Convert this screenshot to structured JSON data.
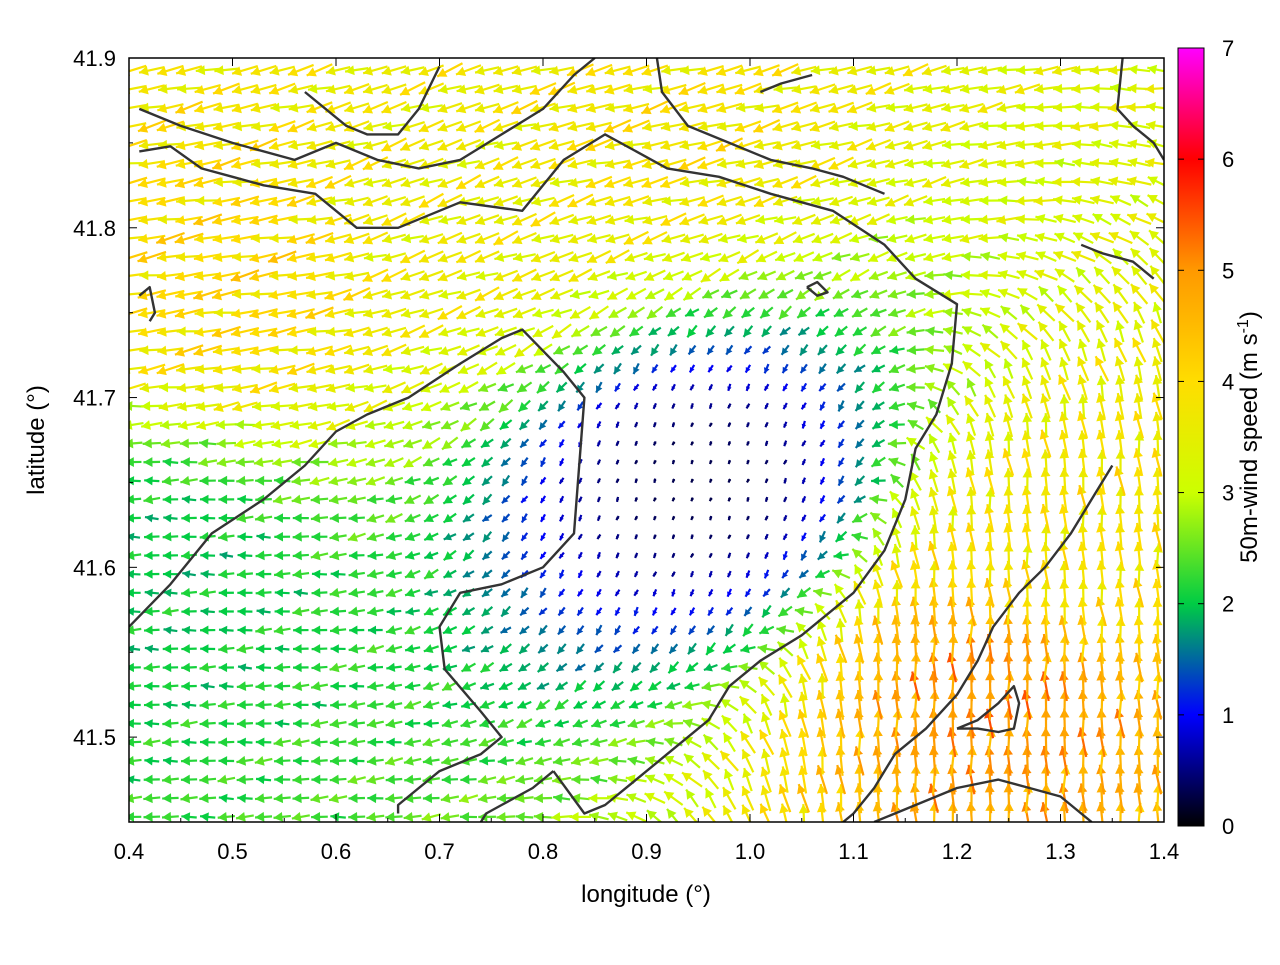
{
  "chart_data": {
    "type": "quiver",
    "title": "",
    "xlabel": "longitude (°)",
    "ylabel": "latitude (°)",
    "colorbar_label": "50m-wind speed (m s-1)",
    "colorbar_label_parts": {
      "main": "50m-wind speed (m s",
      "sup": "-1",
      "close": ")"
    },
    "xlim": [
      0.4,
      1.4
    ],
    "ylim": [
      41.45,
      41.9
    ],
    "x_ticks": [
      "0.4",
      "0.5",
      "0.6",
      "0.7",
      "0.8",
      "0.9",
      "1.0",
      "1.1",
      "1.2",
      "1.3",
      "1.4"
    ],
    "x_tick_values": [
      0.4,
      0.5,
      0.6,
      0.7,
      0.8,
      0.9,
      1.0,
      1.1,
      1.2,
      1.3,
      1.4
    ],
    "y_ticks": [
      "41.5",
      "41.6",
      "41.7",
      "41.8",
      "41.9"
    ],
    "y_tick_values": [
      41.5,
      41.6,
      41.7,
      41.8,
      41.9
    ],
    "colorbar_ticks": [
      "0",
      "1",
      "2",
      "3",
      "4",
      "5",
      "6",
      "7"
    ],
    "colorbar_range": [
      0,
      7
    ],
    "colormap": [
      "#000000",
      "#0000ff",
      "#00cc44",
      "#ccff00",
      "#ffdd00",
      "#ff9900",
      "#ff0000",
      "#ff00ff"
    ],
    "grid": false,
    "wind_field": {
      "grid_step_lon": 0.018,
      "grid_step_lat": 0.011,
      "dominant_direction": "westward (blowing toward west)",
      "regions": [
        {
          "center": [
            0.5,
            41.77
          ],
          "speed_ms": 4.0,
          "direction_deg": 190
        },
        {
          "center": [
            0.72,
            41.8
          ],
          "speed_ms": 3.6,
          "direction_deg": 200
        },
        {
          "center": [
            0.9,
            41.86
          ],
          "speed_ms": 3.8,
          "direction_deg": 195
        },
        {
          "center": [
            1.24,
            41.53
          ],
          "speed_ms": 5.0,
          "direction_deg": 92
        },
        {
          "center": [
            1.3,
            41.6
          ],
          "speed_ms": 3.8,
          "direction_deg": 95
        },
        {
          "center": [
            0.42,
            41.6
          ],
          "speed_ms": 2.0,
          "direction_deg": 180
        },
        {
          "center": [
            0.95,
            41.65
          ],
          "speed_ms": 0.3,
          "direction_deg": 250
        }
      ]
    },
    "contours": [
      [
        [
          0.4,
          41.565
        ],
        [
          0.44,
          41.59
        ],
        [
          0.48,
          41.62
        ],
        [
          0.53,
          41.64
        ],
        [
          0.57,
          41.66
        ],
        [
          0.6,
          41.68
        ],
        [
          0.63,
          41.69
        ],
        [
          0.67,
          41.7
        ],
        [
          0.72,
          41.72
        ],
        [
          0.76,
          41.735
        ],
        [
          0.78,
          41.74
        ],
        [
          0.82,
          41.715
        ],
        [
          0.84,
          41.7
        ],
        [
          0.835,
          41.66
        ],
        [
          0.83,
          41.62
        ],
        [
          0.8,
          41.6
        ],
        [
          0.76,
          41.59
        ],
        [
          0.72,
          41.585
        ],
        [
          0.7,
          41.565
        ],
        [
          0.705,
          41.54
        ],
        [
          0.74,
          41.515
        ],
        [
          0.76,
          41.5
        ],
        [
          0.74,
          41.49
        ],
        [
          0.7,
          41.48
        ],
        [
          0.66,
          41.46
        ],
        [
          0.66,
          41.455
        ]
      ],
      [
        [
          0.81,
          41.48
        ],
        [
          0.79,
          41.47
        ],
        [
          0.76,
          41.46
        ],
        [
          0.745,
          41.455
        ],
        [
          0.74,
          41.45
        ]
      ],
      [
        [
          0.41,
          41.845
        ],
        [
          0.44,
          41.848
        ],
        [
          0.47,
          41.835
        ],
        [
          0.5,
          41.83
        ],
        [
          0.53,
          41.825
        ],
        [
          0.58,
          41.82
        ],
        [
          0.62,
          41.8
        ],
        [
          0.66,
          41.8
        ],
        [
          0.72,
          41.815
        ],
        [
          0.78,
          41.81
        ],
        [
          0.82,
          41.84
        ],
        [
          0.86,
          41.855
        ],
        [
          0.92,
          41.835
        ],
        [
          0.97,
          41.83
        ],
        [
          1.02,
          41.82
        ],
        [
          1.08,
          41.81
        ],
        [
          1.13,
          41.79
        ],
        [
          1.16,
          41.77
        ],
        [
          1.2,
          41.755
        ],
        [
          1.195,
          41.72
        ],
        [
          1.18,
          41.69
        ],
        [
          1.16,
          41.67
        ],
        [
          1.15,
          41.64
        ],
        [
          1.13,
          41.61
        ],
        [
          1.1,
          41.585
        ],
        [
          1.05,
          41.56
        ],
        [
          1.01,
          41.545
        ],
        [
          0.98,
          41.53
        ],
        [
          0.96,
          41.51
        ],
        [
          0.92,
          41.49
        ],
        [
          0.89,
          41.475
        ],
        [
          0.86,
          41.46
        ],
        [
          0.84,
          41.455
        ],
        [
          0.81,
          41.48
        ]
      ],
      [
        [
          0.41,
          41.87
        ],
        [
          0.45,
          41.86
        ],
        [
          0.5,
          41.85
        ],
        [
          0.56,
          41.84
        ],
        [
          0.6,
          41.85
        ],
        [
          0.64,
          41.84
        ],
        [
          0.68,
          41.835
        ],
        [
          0.72,
          41.84
        ],
        [
          0.76,
          41.855
        ],
        [
          0.8,
          41.87
        ],
        [
          0.83,
          41.89
        ],
        [
          0.85,
          41.9
        ]
      ],
      [
        [
          0.57,
          41.88
        ],
        [
          0.59,
          41.87
        ],
        [
          0.61,
          41.86
        ],
        [
          0.63,
          41.855
        ],
        [
          0.66,
          41.855
        ],
        [
          0.68,
          41.87
        ],
        [
          0.7,
          41.895
        ]
      ],
      [
        [
          0.91,
          41.9
        ],
        [
          0.915,
          41.88
        ],
        [
          0.94,
          41.86
        ],
        [
          0.98,
          41.85
        ],
        [
          1.02,
          41.84
        ],
        [
          1.06,
          41.835
        ],
        [
          1.09,
          41.83
        ],
        [
          1.13,
          41.82
        ]
      ],
      [
        [
          1.35,
          41.66
        ],
        [
          1.33,
          41.64
        ],
        [
          1.31,
          41.62
        ],
        [
          1.285,
          41.6
        ],
        [
          1.26,
          41.585
        ],
        [
          1.235,
          41.565
        ],
        [
          1.22,
          41.545
        ],
        [
          1.2,
          41.525
        ],
        [
          1.17,
          41.505
        ],
        [
          1.14,
          41.49
        ],
        [
          1.12,
          41.47
        ],
        [
          1.1,
          41.455
        ],
        [
          1.09,
          41.45
        ]
      ],
      [
        [
          1.12,
          41.45
        ],
        [
          1.16,
          41.46
        ],
        [
          1.2,
          41.47
        ],
        [
          1.24,
          41.475
        ],
        [
          1.27,
          41.47
        ],
        [
          1.3,
          41.465
        ],
        [
          1.33,
          41.45
        ]
      ],
      [
        [
          1.2,
          41.505
        ],
        [
          1.22,
          41.51
        ],
        [
          1.24,
          41.52
        ],
        [
          1.255,
          41.53
        ],
        [
          1.26,
          41.52
        ],
        [
          1.255,
          41.505
        ],
        [
          1.24,
          41.503
        ],
        [
          1.22,
          41.505
        ],
        [
          1.2,
          41.505
        ]
      ],
      [
        [
          1.36,
          41.9
        ],
        [
          1.355,
          41.87
        ],
        [
          1.37,
          41.86
        ],
        [
          1.39,
          41.85
        ],
        [
          1.4,
          41.84
        ]
      ],
      [
        [
          1.32,
          41.79
        ],
        [
          1.34,
          41.785
        ],
        [
          1.37,
          41.78
        ],
        [
          1.39,
          41.77
        ]
      ],
      [
        [
          1.01,
          41.88
        ],
        [
          1.03,
          41.885
        ],
        [
          1.06,
          41.89
        ]
      ],
      [
        [
          1.055,
          41.765
        ],
        [
          1.065,
          41.768
        ],
        [
          1.075,
          41.762
        ],
        [
          1.065,
          41.76
        ],
        [
          1.055,
          41.765
        ]
      ],
      [
        [
          0.41,
          41.76
        ],
        [
          0.42,
          41.765
        ],
        [
          0.425,
          41.75
        ],
        [
          0.42,
          41.745
        ]
      ]
    ]
  }
}
